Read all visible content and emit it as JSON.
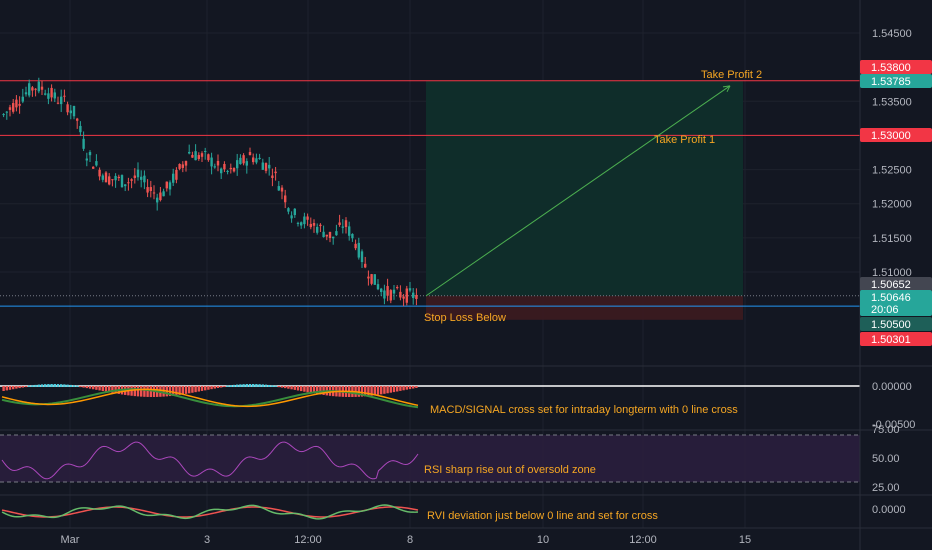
{
  "colors": {
    "background": "#131722",
    "grid": "#1e222d",
    "text": "#b2b5be",
    "up": "#26a69a",
    "down": "#ef5350",
    "level_red": "#f23645",
    "stop_line": "#2196f3",
    "annotation": "#f5a623",
    "target_zone": "#0f2e2b",
    "stop_zone": "#3a1a20",
    "macd_line": "#2962ff",
    "signal_line": "#ff9800",
    "rsi_line": "#7e57c2",
    "rsi_band": "#2a1e3d",
    "rvi_line": "#26a69a",
    "rvi_signal": "#ef5350"
  },
  "chart_data": [
    {
      "type": "candlestick",
      "panel": "price",
      "ylim": [
        1.5,
        1.546
      ],
      "yticks": [
        "1.54500",
        "1.53500",
        "1.52500",
        "1.52000",
        "1.51500",
        "1.51000"
      ],
      "xticks": [
        "Mar",
        "3",
        "12:00",
        "8",
        "10",
        "12:00",
        "15"
      ],
      "close_series": [
        1.533,
        1.5345,
        1.536,
        1.5372,
        1.5368,
        1.5355,
        1.5348,
        1.533,
        1.5275,
        1.5255,
        1.5238,
        1.5235,
        1.5232,
        1.524,
        1.5225,
        1.521,
        1.5225,
        1.5248,
        1.5275,
        1.527,
        1.5265,
        1.525,
        1.5245,
        1.526,
        1.527,
        1.5262,
        1.525,
        1.522,
        1.5185,
        1.5175,
        1.517,
        1.516,
        1.515,
        1.5172,
        1.5148,
        1.511,
        1.5085,
        1.507,
        1.5068,
        1.5066,
        1.5065
      ],
      "levels": [
        {
          "price_label": "1.53800",
          "value": 1.538,
          "label": "Take Profit 2"
        },
        {
          "price_label": "1.53000",
          "value": 1.53,
          "label": "Take Profit 1"
        },
        {
          "price_label": "1.50500",
          "value": 1.505,
          "label": "Stop Loss Below"
        }
      ],
      "price_tags": [
        {
          "text": "1.53800",
          "value": 1.538,
          "kind": "red"
        },
        {
          "text": "1.53785",
          "value": 1.53785,
          "kind": "teal"
        },
        {
          "text": "1.53000",
          "value": 1.53,
          "kind": "red"
        },
        {
          "text": "1.50652",
          "value": 1.50652,
          "kind": "grey"
        },
        {
          "text": "1.50646",
          "value": 1.50646,
          "kind": "teal",
          "sub": "20:06"
        },
        {
          "text": "1.50500",
          "value": 1.505,
          "kind": "tealdark"
        },
        {
          "text": "1.50301",
          "value": 1.50301,
          "kind": "red"
        }
      ],
      "position": {
        "entry": 1.5065,
        "target": 1.538,
        "stop": 1.503
      },
      "annotations": [
        "Take Profit 2",
        "Take Profit 1",
        "Stop Loss Below"
      ]
    },
    {
      "type": "line",
      "panel": "macd",
      "yticks": [
        "0.00000",
        "-0.00500"
      ],
      "annotation": "MACD/SIGNAL cross set for intraday longterm with 0 line cross"
    },
    {
      "type": "line",
      "panel": "rsi",
      "yticks": [
        "75.00",
        "50.00",
        "25.00"
      ],
      "annotation": "RSI sharp rise out of oversold zone"
    },
    {
      "type": "line",
      "panel": "rvi",
      "yticks": [
        "0.0000"
      ],
      "annotation": "RVI deviation just below 0 line and set for cross"
    }
  ]
}
